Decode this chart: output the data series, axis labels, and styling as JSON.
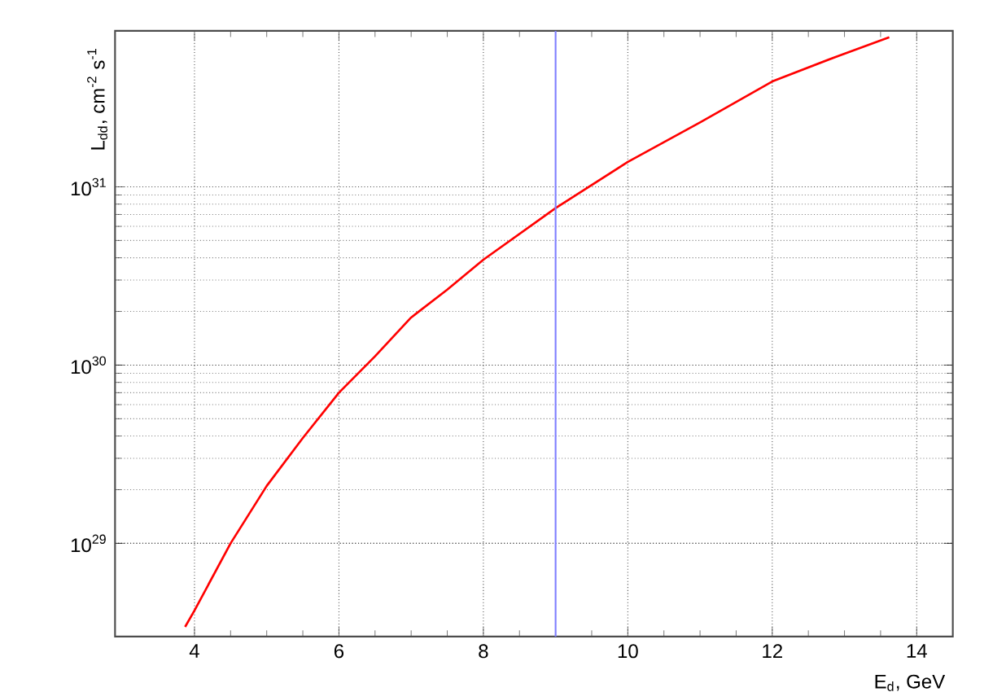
{
  "chart_data": {
    "type": "line",
    "xlabel": "E$_{d}$, GeV",
    "ylabel": "L$_{dd}$, cm$^{-2}$ s$^{-1}$",
    "series": [
      {
        "color": "#ff0000",
        "x": [
          3.87,
          4,
          4.5,
          5,
          5.5,
          6,
          6.5,
          7,
          7.5,
          8,
          9,
          10,
          11,
          12,
          12.9,
          13.62
        ],
        "values": [
          3.4e+28,
          4.2e+28,
          1e+29,
          2.1e+29,
          3.9e+29,
          7e+29,
          1.12e+30,
          1.85e+30,
          2.65e+30,
          3.9e+30,
          7.6e+30,
          1.38e+31,
          2.3e+31,
          3.9e+31,
          5.4e+31,
          6.9e+31
        ]
      }
    ],
    "xlim": [
      2.9,
      14.5
    ],
    "xticks": [
      4,
      6,
      8,
      10,
      12,
      14
    ],
    "ylim": [
      3e+28,
      7.5e+31
    ],
    "yticks": [
      {
        "value": 1e+29,
        "label": "10$^{29}$"
      },
      {
        "value": 1e+30,
        "label": "10$^{30}$"
      },
      {
        "value": 1e+31,
        "label": "10$^{31}$"
      }
    ],
    "log": "y",
    "grid": true,
    "marker": "none",
    "line_style": "solid",
    "ref_lines": [
      {
        "axis": "x",
        "value": 9,
        "color": "#8080ff"
      }
    ]
  }
}
